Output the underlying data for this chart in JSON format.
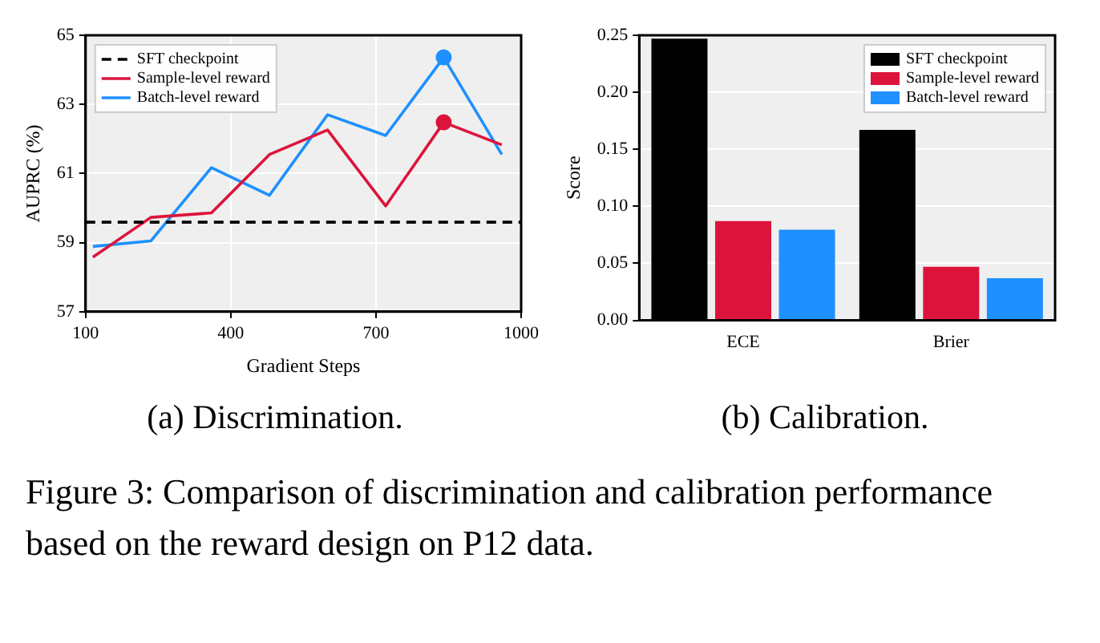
{
  "chart_data": [
    {
      "type": "line",
      "xlabel": "Gradient Steps",
      "ylabel": "AUPRC (%)",
      "xlim": [
        100,
        1000
      ],
      "xticks": [
        100,
        400,
        700,
        1000
      ],
      "ylim": [
        57,
        65
      ],
      "yticks": [
        57,
        59,
        61,
        63,
        65
      ],
      "grid": true,
      "legend": "top left",
      "marker": "none",
      "annotations": [
        "(a) Discrimination.",
        "Figure 3: Comparison of discrimination and calibration performance based on the reward design on P12 data."
      ],
      "series": [
        {
          "name": "SFT checkpoint",
          "color": "#000000",
          "x": [
            100,
            1000
          ],
          "values": [
            59.59,
            59.59
          ],
          "line_style": "dashed"
        },
        {
          "name": "Sample-level reward",
          "color": "#dc143c",
          "x": [
            115,
            235,
            360,
            480,
            600,
            720,
            840,
            960
          ],
          "values": [
            58.58,
            59.73,
            59.86,
            61.55,
            62.26,
            60.06,
            62.48,
            61.83
          ]
        },
        {
          "name": "Batch-level reward",
          "color": "#1e90ff",
          "x": [
            115,
            235,
            360,
            480,
            600,
            720,
            840,
            960
          ],
          "values": [
            58.89,
            59.05,
            61.17,
            60.37,
            62.7,
            62.1,
            64.36,
            61.55
          ]
        },
        {
          "type": "scatter",
          "color": "#dc143c",
          "x": [
            840
          ],
          "values": [
            62.48
          ],
          "marker": "circle"
        },
        {
          "type": "scatter",
          "color": "#1e90ff",
          "x": [
            840
          ],
          "values": [
            64.36
          ],
          "marker": "circle"
        }
      ]
    },
    {
      "type": "bar",
      "ylabel": "Score",
      "categories": [
        "ECE",
        "Brier"
      ],
      "ylim": [
        0,
        0.25
      ],
      "yticks": [
        {
          "value": 0,
          "label": "0.00"
        },
        {
          "value": 0.05,
          "label": "0.05"
        },
        {
          "value": 0.1,
          "label": "0.10"
        },
        {
          "value": 0.15,
          "label": "0.15"
        },
        {
          "value": 0.2,
          "label": "0.20"
        },
        {
          "value": 0.25,
          "label": "0.25"
        }
      ],
      "grid": "y",
      "legend": "top right",
      "annotations": [
        "(b) Calibration."
      ],
      "series": [
        {
          "name": "SFT checkpoint",
          "color": "#000000",
          "values": [
            0.247,
            0.167
          ]
        },
        {
          "name": "Sample-level reward",
          "color": "#dc143c",
          "values": [
            0.087,
            0.047
          ]
        },
        {
          "name": "Batch-level reward",
          "color": "#1e90ff",
          "values": [
            0.0795,
            0.037
          ]
        }
      ]
    }
  ]
}
